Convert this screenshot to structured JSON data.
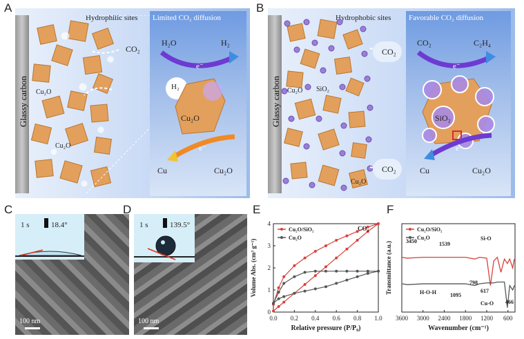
{
  "panel_labels": {
    "a": "A",
    "b": "B",
    "c": "C",
    "d": "D",
    "e": "E",
    "f": "F"
  },
  "panel_a": {
    "electrode": "Glassy carbon",
    "zone_label": "Hydrophilic sites",
    "inset_title": "Limited CO₂ diffusion",
    "gas": "CO₂",
    "material_1": "Cu₂O",
    "material_2": "Cu₂O",
    "water": "H₂O",
    "hydrogen": "H₂",
    "h2_bubble": "H₂",
    "electron_1": "e⁻",
    "electron_2": "e⁻",
    "crystal": "Cu₂O",
    "product_cu": "Cu",
    "reactant": "Cu₂O"
  },
  "panel_b": {
    "electrode": "Glassy carbon",
    "zone_label": "Hydrophobic sites",
    "inset_title": "Favorable CO₂ diffusion",
    "gas_1": "CO₂",
    "gas_2": "CO₂",
    "material_cu2o": "Cu₂O",
    "material_sio2": "SiO₂",
    "material_cu2o_2": "Cu₂O",
    "reactant_co2": "CO₂",
    "product_c2h4": "C₂H₄",
    "electron_1": "e⁻",
    "electron_2": "e⁻",
    "crystal_sio2": "SiO₂",
    "product_cu": "Cu",
    "reactant": "Cu₂O"
  },
  "panel_c": {
    "time": "1 s",
    "angle": "18.4°",
    "scale": "100 nm"
  },
  "panel_d": {
    "time": "1 s",
    "angle": "139.5°",
    "scale": "100 nm"
  },
  "chart_data": [
    {
      "type": "line",
      "panel": "E",
      "ylabel": "Volume Abs. (cm³ g⁻¹)",
      "xlabel": "Relative pressure (P/P₀)",
      "annotation": "CO₂",
      "xlim": [
        0,
        1.0
      ],
      "ylim": [
        0,
        4
      ],
      "xticks": [
        "0.0",
        "0.2",
        "0.4",
        "0.6",
        "0.8",
        "1.0"
      ],
      "yticks": [
        "0",
        "1",
        "2",
        "3",
        "4"
      ],
      "legend_placement": "top-left",
      "series": [
        {
          "name": "Cu₂O/SiO₂",
          "color": "#d9403a",
          "adsorption_x": [
            0.0,
            0.05,
            0.1,
            0.2,
            0.3,
            0.4,
            0.5,
            0.6,
            0.7,
            0.8,
            0.9,
            1.0
          ],
          "adsorption_y": [
            0.05,
            0.25,
            0.45,
            0.85,
            1.25,
            1.65,
            2.05,
            2.45,
            2.85,
            3.25,
            3.65,
            4.0
          ],
          "desorption_x": [
            1.0,
            0.9,
            0.8,
            0.7,
            0.6,
            0.5,
            0.4,
            0.3,
            0.2,
            0.1,
            0.05,
            0.0
          ],
          "desorption_y": [
            4.0,
            3.85,
            3.65,
            3.45,
            3.25,
            3.0,
            2.75,
            2.45,
            2.1,
            1.6,
            1.1,
            0.35
          ]
        },
        {
          "name": "Cu₂O",
          "color": "#555555",
          "adsorption_x": [
            0.0,
            0.05,
            0.1,
            0.2,
            0.3,
            0.4,
            0.5,
            0.6,
            0.7,
            0.8,
            0.9,
            1.0
          ],
          "adsorption_y": [
            0.4,
            0.6,
            0.7,
            0.85,
            0.95,
            1.05,
            1.15,
            1.3,
            1.45,
            1.6,
            1.75,
            1.85
          ],
          "desorption_x": [
            1.0,
            0.9,
            0.8,
            0.7,
            0.6,
            0.5,
            0.4,
            0.3,
            0.2,
            0.1,
            0.05,
            0.0
          ],
          "desorption_y": [
            1.85,
            1.85,
            1.85,
            1.85,
            1.85,
            1.85,
            1.85,
            1.8,
            1.6,
            1.3,
            0.9,
            0.4
          ]
        }
      ]
    },
    {
      "type": "line",
      "panel": "F",
      "ylabel": "Transmittance (a.u.)",
      "xlabel": "Wavenumber (cm⁻¹)",
      "xlim": [
        3600,
        400
      ],
      "xticks": [
        "3600",
        "3000",
        "2400",
        "1800",
        "1200",
        "600"
      ],
      "legend_placement": "top-left",
      "annotations": [
        "3450",
        "1539",
        "H-O-H",
        "Si-O",
        "798",
        "1095",
        "617",
        "Cu-O",
        "466"
      ],
      "series": [
        {
          "name": "Cu₂O/SiO₂",
          "color": "#d9403a",
          "x": [
            3600,
            3450,
            3000,
            2400,
            1800,
            1539,
            1400,
            1200,
            1095,
            1000,
            900,
            798,
            700,
            617,
            550,
            466,
            420
          ],
          "y": [
            0.62,
            0.61,
            0.62,
            0.62,
            0.62,
            0.6,
            0.62,
            0.61,
            0.3,
            0.58,
            0.62,
            0.45,
            0.6,
            0.55,
            0.6,
            0.5,
            0.6
          ]
        },
        {
          "name": "Cu₂O",
          "color": "#555555",
          "x": [
            3600,
            3450,
            3000,
            2400,
            1800,
            1539,
            1400,
            1200,
            1095,
            1000,
            900,
            798,
            700,
            617,
            550,
            466,
            420
          ],
          "y": [
            0.32,
            0.31,
            0.32,
            0.32,
            0.32,
            0.3,
            0.32,
            0.33,
            0.33,
            0.33,
            0.34,
            0.34,
            0.34,
            0.05,
            0.3,
            0.25,
            0.3
          ]
        }
      ]
    }
  ]
}
